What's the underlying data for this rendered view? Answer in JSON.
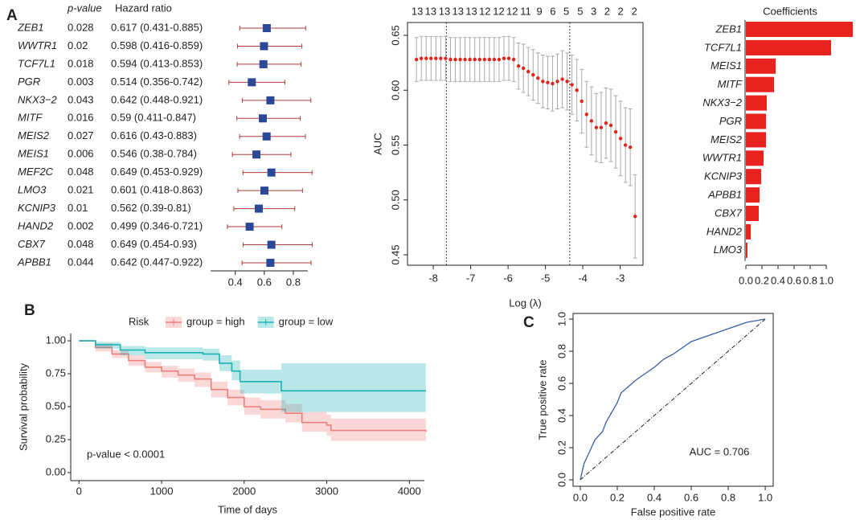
{
  "chart_data": [
    {
      "type": "forest",
      "panel": "A",
      "headers": [
        "p-value",
        "Hazard ratio"
      ],
      "categories": [
        "ZEB1",
        "WWTR1",
        "TCF7L1",
        "PGR",
        "NKX3−2",
        "MITF",
        "MEIS2",
        "MEIS1",
        "MEF2C",
        "LMO3",
        "KCNIP3",
        "HAND2",
        "CBX7",
        "APBB1"
      ],
      "p_values": [
        0.028,
        0.02,
        0.018,
        0.003,
        0.043,
        0.016,
        0.027,
        0.006,
        0.048,
        0.021,
        0.01,
        0.002,
        0.048,
        0.044
      ],
      "hr_labels": [
        "0.617 (0.431-0.885)",
        "0.598 (0.416-0.859)",
        "0.594 (0.413-0.853)",
        "0.514 (0.356-0.742)",
        "0.642 (0.448-0.921)",
        "0.59 (0.411-0.847)",
        "0.616 (0.43-0.883)",
        "0.546 (0.38-0.784)",
        "0.649 (0.453-0.929)",
        "0.601 (0.418-0.863)",
        "0.562 (0.39-0.81)",
        "0.499 (0.346-0.721)",
        "0.649 (0.454-0.93)",
        "0.642 (0.447-0.922)"
      ],
      "values": [
        0.617,
        0.598,
        0.594,
        0.514,
        0.642,
        0.59,
        0.616,
        0.546,
        0.649,
        0.601,
        0.562,
        0.499,
        0.649,
        0.642
      ],
      "lower": [
        0.431,
        0.416,
        0.413,
        0.356,
        0.448,
        0.411,
        0.43,
        0.38,
        0.453,
        0.418,
        0.39,
        0.346,
        0.454,
        0.447
      ],
      "upper": [
        0.885,
        0.859,
        0.853,
        0.742,
        0.921,
        0.847,
        0.883,
        0.784,
        0.929,
        0.863,
        0.81,
        0.721,
        0.93,
        0.922
      ],
      "xlim": [
        0.23,
        0.9
      ],
      "xticks": [
        0.4,
        0.6,
        0.8
      ],
      "color": "#2a4896",
      "ci_color": "#b23a3a"
    },
    {
      "type": "errorbar",
      "xlabel": "Log (λ)",
      "ylabel": "AUC",
      "x": [
        -8.45,
        -8.32,
        -8.19,
        -8.06,
        -7.93,
        -7.8,
        -7.67,
        -7.54,
        -7.41,
        -7.28,
        -7.15,
        -7.02,
        -6.89,
        -6.76,
        -6.63,
        -6.5,
        -6.37,
        -6.24,
        -6.11,
        -5.98,
        -5.85,
        -5.72,
        -5.59,
        -5.46,
        -5.33,
        -5.2,
        -5.07,
        -4.94,
        -4.81,
        -4.68,
        -4.55,
        -4.42,
        -4.29,
        -4.16,
        -4.03,
        -3.9,
        -3.77,
        -3.64,
        -3.51,
        -3.38,
        -3.25,
        -3.12,
        -2.99,
        -2.86,
        -2.73,
        -2.6
      ],
      "values": [
        0.628,
        0.629,
        0.629,
        0.629,
        0.629,
        0.629,
        0.629,
        0.628,
        0.628,
        0.628,
        0.628,
        0.628,
        0.628,
        0.628,
        0.628,
        0.628,
        0.628,
        0.628,
        0.629,
        0.629,
        0.628,
        0.622,
        0.62,
        0.617,
        0.614,
        0.611,
        0.608,
        0.607,
        0.606,
        0.608,
        0.61,
        0.608,
        0.605,
        0.6,
        0.59,
        0.578,
        0.572,
        0.566,
        0.566,
        0.57,
        0.568,
        0.562,
        0.556,
        0.55,
        0.548,
        0.485
      ],
      "errors": [
        0.02,
        0.02,
        0.02,
        0.02,
        0.02,
        0.02,
        0.02,
        0.02,
        0.02,
        0.02,
        0.02,
        0.02,
        0.02,
        0.02,
        0.02,
        0.02,
        0.02,
        0.02,
        0.02,
        0.02,
        0.02,
        0.021,
        0.022,
        0.022,
        0.023,
        0.023,
        0.024,
        0.024,
        0.025,
        0.025,
        0.026,
        0.026,
        0.027,
        0.028,
        0.029,
        0.03,
        0.031,
        0.031,
        0.032,
        0.032,
        0.033,
        0.033,
        0.034,
        0.034,
        0.035,
        0.038
      ],
      "xlim": [
        -8.69,
        -2.39
      ],
      "ylim": [
        0.4405,
        0.6617
      ],
      "xticks": [
        -8,
        -7,
        -6,
        -5,
        -4,
        -3
      ],
      "yticks": [
        0.45,
        {
          "value": 0.5,
          "label": "0.50"
        },
        0.55,
        {
          "value": 0.6,
          "label": "0.60"
        },
        0.65
      ],
      "x2ticks": [
        {
          "value": -8.43,
          "label": "13"
        },
        {
          "value": -8.07,
          "label": "13"
        },
        {
          "value": -7.7,
          "label": "13"
        },
        {
          "value": -7.34,
          "label": "13"
        },
        {
          "value": -6.98,
          "label": "13"
        },
        {
          "value": -6.62,
          "label": "12"
        },
        {
          "value": -6.25,
          "label": "12"
        },
        {
          "value": -5.89,
          "label": "12"
        },
        {
          "value": -5.53,
          "label": "11"
        },
        {
          "value": -5.16,
          "label": "9"
        },
        {
          "value": -4.8,
          "label": "6"
        },
        {
          "value": -4.44,
          "label": "5"
        },
        {
          "value": -4.07,
          "label": "5"
        },
        {
          "value": -3.71,
          "label": "3"
        },
        {
          "value": -3.35,
          "label": "2"
        },
        {
          "value": -2.99,
          "label": "2"
        },
        {
          "value": -2.62,
          "label": "2"
        }
      ],
      "vlines": [
        -7.65,
        -4.35
      ],
      "color": "#e2231a",
      "error_color": "#aaaaaa"
    },
    {
      "type": "barh",
      "title": "Coefficients",
      "categories": [
        "ZEB1",
        "TCF7L1",
        "MEIS1",
        "MITF",
        "NKX3−2",
        "PGR",
        "MEIS2",
        "WWTR1",
        "KCNIP3",
        "APBB1",
        "CBX7",
        "HAND2",
        "LMO3"
      ],
      "values": [
        1.33,
        1.06,
        0.37,
        0.35,
        0.26,
        0.25,
        0.25,
        0.22,
        0.19,
        0.17,
        0.16,
        0.06,
        0.02
      ],
      "xlim": [
        0,
        1.35
      ],
      "xticks": [
        {
          "value": 0,
          "label": "0.0"
        },
        0.2,
        0.4,
        0.6,
        0.8,
        {
          "value": 1,
          "label": "1.0"
        }
      ],
      "color": "#e8231f"
    },
    {
      "type": "km",
      "panel": "B",
      "legend_title": "Risk",
      "legend": "top",
      "xlabel": "Time of days",
      "ylabel": "Survival probability",
      "annotation": "p-value < 0.0001",
      "series": [
        {
          "name": "group = high",
          "color": "#ee7f7d",
          "x": [
            0,
            200,
            400,
            600,
            800,
            1000,
            1200,
            1400,
            1600,
            1800,
            2000,
            2200,
            2500,
            2700,
            3000,
            3050,
            4200
          ],
          "values": [
            1,
            0.95,
            0.9,
            0.85,
            0.8,
            0.77,
            0.74,
            0.71,
            0.63,
            0.57,
            0.5,
            0.48,
            0.45,
            0.38,
            0.36,
            0.32,
            0.31
          ],
          "lower": [
            1,
            0.92,
            0.87,
            0.81,
            0.76,
            0.72,
            0.69,
            0.65,
            0.57,
            0.51,
            0.44,
            0.41,
            0.38,
            0.31,
            0.28,
            0.24,
            0.21
          ],
          "upper": [
            1,
            0.98,
            0.93,
            0.89,
            0.84,
            0.81,
            0.79,
            0.76,
            0.69,
            0.63,
            0.57,
            0.55,
            0.52,
            0.46,
            0.44,
            0.41,
            0.41
          ]
        },
        {
          "name": "group = low",
          "color": "#1bb3b5",
          "x": [
            0,
            200,
            500,
            800,
            1500,
            1700,
            1850,
            1950,
            2450,
            4200
          ],
          "values": [
            1,
            0.97,
            0.93,
            0.91,
            0.9,
            0.83,
            0.77,
            0.69,
            0.62,
            0.62
          ],
          "lower": [
            1,
            0.94,
            0.89,
            0.86,
            0.85,
            0.77,
            0.7,
            0.6,
            0.46,
            0.46
          ],
          "upper": [
            1,
            0.99,
            0.96,
            0.95,
            0.94,
            0.89,
            0.85,
            0.78,
            0.83,
            0.83
          ]
        }
      ],
      "xlim": [
        -100,
        4182
      ],
      "ylim": [
        -0.061,
        1.055
      ],
      "xticks": [
        0,
        1000,
        2000,
        3000,
        4000
      ],
      "yticks": [
        {
          "value": 0,
          "label": "0.00"
        },
        0.25,
        {
          "value": 0.5,
          "label": "0.50"
        },
        0.75,
        {
          "value": 1,
          "label": "1.00"
        }
      ]
    },
    {
      "type": "roc",
      "panel": "C",
      "xlabel": "False positive rate",
      "ylabel": "True positive rate",
      "annotation": "AUC = 0.706",
      "x": [
        0,
        0.01,
        0.02,
        0.04,
        0.06,
        0.08,
        0.12,
        0.14,
        0.17,
        0.2,
        0.22,
        0.26,
        0.3,
        0.35,
        0.4,
        0.45,
        0.5,
        0.55,
        0.6,
        0.7,
        0.8,
        0.9,
        1
      ],
      "values": [
        0,
        0.05,
        0.1,
        0.15,
        0.2,
        0.25,
        0.3,
        0.36,
        0.42,
        0.48,
        0.54,
        0.58,
        0.62,
        0.66,
        0.7,
        0.75,
        0.78,
        0.82,
        0.86,
        0.9,
        0.94,
        0.98,
        1
      ],
      "xlim": [
        -0.039,
        1.043
      ],
      "ylim": [
        -0.04,
        1.035
      ],
      "xticks": [
        {
          "value": 0,
          "label": "0.0"
        },
        0.2,
        0.4,
        0.6,
        0.8,
        {
          "value": 1,
          "label": "1.0"
        }
      ],
      "yticks": [
        {
          "value": 0,
          "label": "0.0"
        },
        0.2,
        0.4,
        0.6,
        0.8,
        {
          "value": 1,
          "label": "1.0"
        }
      ],
      "color": "#3a5fa8",
      "reference_line": true
    }
  ]
}
